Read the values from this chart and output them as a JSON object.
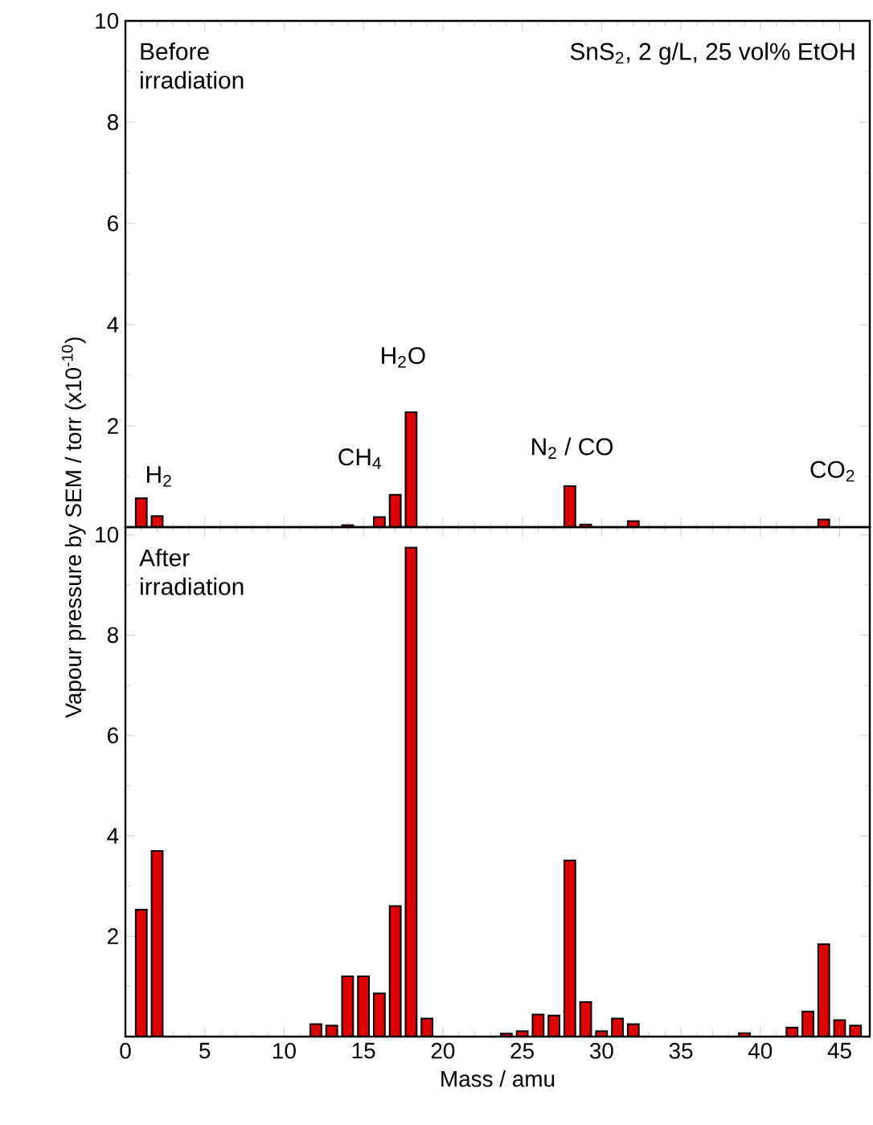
{
  "chart_data": [
    {
      "type": "bar",
      "ylabel": "Vapour pressure by SEM / torr (x10$^{-10}$)",
      "x": [
        1,
        2,
        14,
        16,
        17,
        18,
        28,
        29,
        32,
        44
      ],
      "series": [
        {
          "color": "#e00000",
          "values": [
            0.57,
            0.22,
            0.04,
            0.2,
            0.64,
            2.27,
            0.81,
            0.05,
            0.12,
            0.15
          ]
        }
      ],
      "xlim": [
        0,
        46.9
      ],
      "xticks": [
        0,
        5,
        10,
        15,
        20,
        25,
        30,
        35,
        40,
        45
      ],
      "ylim": [
        0,
        10
      ],
      "yticks": [
        {
          "value": 0,
          "label": null
        },
        2,
        4,
        6,
        8,
        10
      ],
      "tick_labels": "y",
      "annotations": [
        "Before irradiation",
        "SnS$_{2}$, 2 g/L, 25 vol% EtOH",
        "H$_{2}$",
        "CH$_{4}$",
        "H$_{2}$O",
        "N$_{2}$ / CO",
        "CO$_{2}$"
      ]
    },
    {
      "type": "bar",
      "xlabel": "Mass / amu",
      "x": [
        1,
        2,
        12,
        13,
        14,
        15,
        16,
        17,
        18,
        19,
        24,
        25,
        26,
        27,
        28,
        29,
        30,
        31,
        32,
        39,
        42,
        43,
        44,
        45,
        46
      ],
      "series": [
        {
          "color": "#e00000",
          "values": [
            2.53,
            3.7,
            0.25,
            0.22,
            1.2,
            1.2,
            0.86,
            2.6,
            9.74,
            0.36,
            0.06,
            0.11,
            0.44,
            0.42,
            3.51,
            0.69,
            0.11,
            0.36,
            0.25,
            0.07,
            0.18,
            0.5,
            1.84,
            0.33,
            0.22
          ]
        }
      ],
      "xlim": [
        0,
        46.9
      ],
      "xticks": [
        0,
        5,
        10,
        15,
        20,
        25,
        30,
        35,
        40,
        45
      ],
      "ylim": [
        0,
        10.15
      ],
      "yticks": [
        {
          "value": 0,
          "label": null
        },
        2,
        4,
        6,
        8,
        10
      ],
      "annotations": [
        "After irradiation"
      ]
    }
  ]
}
